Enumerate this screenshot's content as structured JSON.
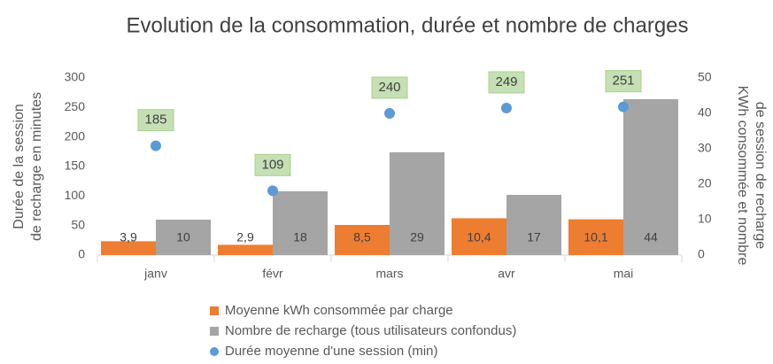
{
  "chart_data": {
    "type": "bar",
    "title": "Evolution de la consommation, durée et nombre de charges",
    "ylabel": [
      "Durée de la session",
      "de recharge en minutes"
    ],
    "y2label": [
      "KWh consommée et nombre",
      "de session de recharge"
    ],
    "categories": [
      "janv",
      "févr",
      "mars",
      "avr",
      "mai"
    ],
    "ylim": [
      0,
      300
    ],
    "yticks": [
      0,
      50,
      100,
      150,
      200,
      250,
      300
    ],
    "y2lim": [
      0,
      50
    ],
    "y2ticks": [
      0,
      10,
      20,
      30,
      40,
      50
    ],
    "series": [
      {
        "name": "Moyenne kWh consommée par charge",
        "type": "bar",
        "axis": "y2",
        "color": "#ed7d31",
        "values": [
          3.9,
          2.9,
          8.5,
          10.4,
          10.1
        ],
        "value_labels": [
          "3,9",
          "2,9",
          "8,5",
          "10,4",
          "10,1"
        ]
      },
      {
        "name": "Nombre de recharge (tous utilisateurs confondus)",
        "type": "bar",
        "axis": "y2",
        "color": "#a5a5a5",
        "values": [
          10,
          18,
          29,
          17,
          44
        ]
      },
      {
        "name": "Durée moyenne d'une session (min)",
        "type": "scatter",
        "axis": "y",
        "color": "#5b9bd5",
        "values": [
          185,
          109,
          240,
          249,
          251
        ]
      }
    ],
    "legend": "bottom"
  }
}
